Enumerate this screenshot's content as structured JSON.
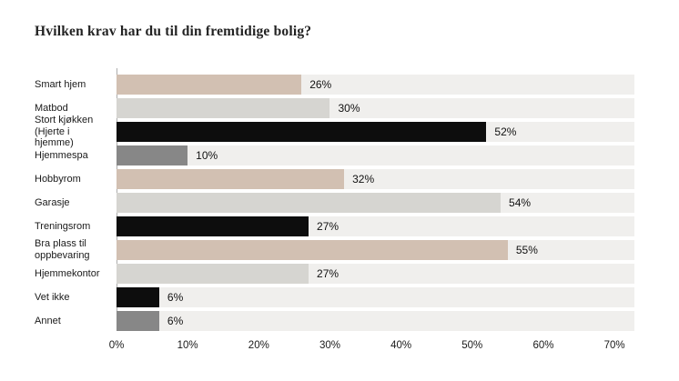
{
  "title": "Hvilken krav har du til din fremtidige bolig?",
  "colors": {
    "background": "#ffffff",
    "track": "#f0efed",
    "axis_line": "#adadad",
    "text": "#1a1a1a",
    "title_text": "#222222",
    "tan": "#d2c0b2",
    "light_gray": "#d6d5d1",
    "black": "#0d0d0d",
    "medium_gray": "#878787"
  },
  "chart_data": {
    "type": "bar",
    "orientation": "horizontal",
    "title": "Hvilken krav har du til din fremtidige bolig?",
    "categories": [
      "Smart hjem",
      "Matbod",
      "Stort kjøkken (Hjerte i hjemme)",
      "Hjemmespa",
      "Hobbyrom",
      "Garasje",
      "Treningsrom",
      "Bra plass til oppbevaring",
      "Hjemmekontor",
      "Vet ikke",
      "Annet"
    ],
    "values": [
      26,
      30,
      52,
      10,
      32,
      54,
      27,
      55,
      27,
      6,
      6
    ],
    "value_labels": [
      "26%",
      "30%",
      "52%",
      "10%",
      "32%",
      "54%",
      "27%",
      "55%",
      "27%",
      "6%",
      "6%"
    ],
    "bar_colors": [
      "#d2c0b2",
      "#d6d5d1",
      "#0d0d0d",
      "#878787",
      "#d2c0b2",
      "#d6d5d1",
      "#0d0d0d",
      "#d2c0b2",
      "#d6d5d1",
      "#0d0d0d",
      "#878787"
    ],
    "track_color": "#f0efed",
    "axis_line_color": "#adadad",
    "xlabel": "",
    "ylabel": "",
    "x_ticks": [
      "0%",
      "10%",
      "20%",
      "30%",
      "40%",
      "50%",
      "60%",
      "70%"
    ],
    "x_tick_values": [
      0,
      10,
      20,
      30,
      40,
      50,
      60,
      70
    ],
    "xlim": [
      0,
      72.8
    ],
    "grid": false,
    "legend": false
  }
}
